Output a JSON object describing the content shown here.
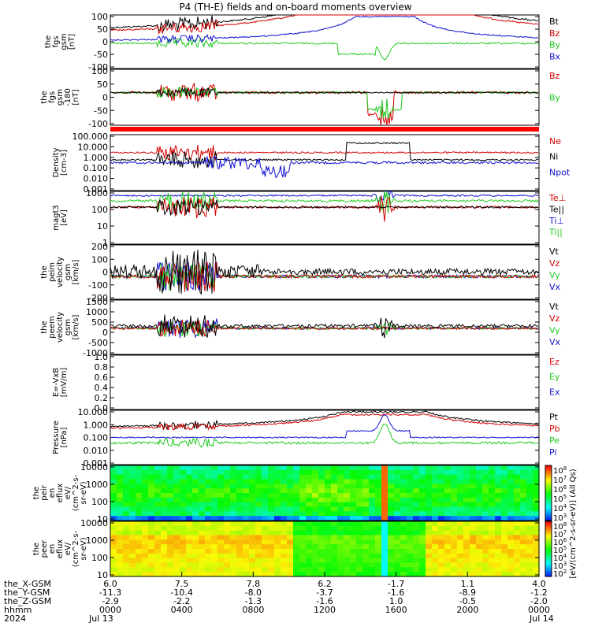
{
  "title": "P4 (TH-E) fields and on-board moments overview",
  "colors": {
    "black": "#000000",
    "red": "#d40000",
    "green": "#22cc22",
    "blue": "#1010d0"
  },
  "chart_data": {
    "type": "line",
    "x_axis": {
      "ticks_hhmm": [
        "0000",
        "0400",
        "0800",
        "1200",
        "1600",
        "2000",
        "0000"
      ],
      "x_gsm": [
        "6.0",
        "7.5",
        "7.8",
        "6.2",
        "-1.7",
        "1.1",
        "4.0"
      ],
      "y_gsm": [
        "-11.3",
        "-10.4",
        "-8.0",
        "-3.7",
        "-1.6",
        "-8.9",
        "-1.2"
      ],
      "z_gsm": [
        "-2.9",
        "-2.2",
        "-1.3",
        "-1.6",
        "1.0",
        "-0.5",
        "-2.0"
      ],
      "row_labels": [
        "the_X-GSM",
        "the_Y-GSM",
        "the_Z-GSM",
        "hhmm",
        "2024"
      ],
      "dates": [
        "Jul 13",
        "Jul 14"
      ]
    },
    "panels": [
      {
        "id": "fgs",
        "ylabel": [
          "the",
          "fgs",
          "gsm",
          "[nT]"
        ],
        "yticks": [
          "100",
          "50",
          "0",
          "-50",
          "-100"
        ],
        "ylim": [
          -100,
          100
        ],
        "legend": [
          {
            "label": "Bt",
            "color": "black"
          },
          {
            "label": "Bz",
            "color": "red"
          },
          {
            "label": "By",
            "color": "green"
          },
          {
            "label": "Bx",
            "color": "blue"
          }
        ]
      },
      {
        "id": "fgs_angle",
        "ylabel": [
          "the",
          "fgs",
          "gsm",
          "-180",
          "[nT]"
        ],
        "yticks": [
          "100",
          "50",
          "0",
          "-50",
          "-100"
        ],
        "ylim": [
          -120,
          100
        ],
        "legend": [
          {
            "label": "Bz",
            "color": "red"
          },
          {
            "label": "By",
            "color": "green"
          }
        ]
      },
      {
        "id": "density",
        "ylabel": [
          "Density",
          "[cm-3]"
        ],
        "yticks": [
          "100.000",
          "10.000",
          "1.000",
          "0.100",
          "0.010",
          "0.001"
        ],
        "log": true,
        "legend": [
          {
            "label": "Ne",
            "color": "red"
          },
          {
            "label": "Ni",
            "color": "black"
          },
          {
            "label": "Npot",
            "color": "blue"
          }
        ]
      },
      {
        "id": "temp",
        "ylabel": [
          "magt3",
          "[eV]"
        ],
        "yticks": [
          "1000",
          "100",
          "10",
          "1"
        ],
        "log": true,
        "legend": [
          {
            "label": "Te⊥",
            "color": "red"
          },
          {
            "label": "Te||",
            "color": "black"
          },
          {
            "label": "Ti⊥",
            "color": "blue"
          },
          {
            "label": "Ti||",
            "color": "green"
          }
        ]
      },
      {
        "id": "peim_vel",
        "ylabel": [
          "the",
          "peim",
          "velocity",
          "gsm",
          "[km/s]"
        ],
        "yticks": [
          "200",
          "100",
          "0",
          "-100",
          "-200"
        ],
        "ylim": [
          -200,
          200
        ],
        "legend": [
          {
            "label": "Vt",
            "color": "black"
          },
          {
            "label": "Vz",
            "color": "red"
          },
          {
            "label": "Vy",
            "color": "green"
          },
          {
            "label": "Vx",
            "color": "blue"
          }
        ]
      },
      {
        "id": "peem_vel",
        "ylabel": [
          "the",
          "peem",
          "velocity",
          "gsm",
          "[km/s]"
        ],
        "yticks": [
          "1500",
          "1000",
          "500",
          "0",
          "-500",
          "-1000"
        ],
        "ylim": [
          -1500,
          1500
        ],
        "legend": [
          {
            "label": "Vt",
            "color": "black"
          },
          {
            "label": "Vz",
            "color": "red"
          },
          {
            "label": "Vy",
            "color": "green"
          },
          {
            "label": "Vx",
            "color": "blue"
          }
        ]
      },
      {
        "id": "efield",
        "ylabel": [
          "E=-VxB",
          "[mV/m]"
        ],
        "yticks": [
          "1.0",
          "0.8",
          "0.6",
          "0.4",
          "0.2",
          "0.0"
        ],
        "ylim": [
          0,
          1
        ],
        "legend": [
          {
            "label": "Ez",
            "color": "red"
          },
          {
            "label": "Ey",
            "color": "green"
          },
          {
            "label": "Ex",
            "color": "blue"
          }
        ]
      },
      {
        "id": "pressure",
        "ylabel": [
          "Pressure",
          "[nPa]"
        ],
        "yticks": [
          "10.000",
          "1.000",
          "0.100",
          "0.010",
          "0.001"
        ],
        "log": true,
        "legend": [
          {
            "label": "Pt",
            "color": "black"
          },
          {
            "label": "Pb",
            "color": "red"
          },
          {
            "label": "Pe",
            "color": "green"
          },
          {
            "label": "Pi",
            "color": "blue"
          }
        ]
      },
      {
        "id": "peir_flux",
        "ylabel": [
          "the",
          "peir",
          "en",
          "eflux",
          "eV/",
          "(cm^2-s-",
          "sr-eV)"
        ],
        "yticks": [
          "10000",
          "1000",
          "100",
          "10"
        ],
        "type": "heatmap"
      },
      {
        "id": "peer_flux",
        "ylabel": [
          "the",
          "peer",
          "en",
          "eflux",
          "eV/",
          "(cm^2-s-",
          "sr-eV)"
        ],
        "yticks": [
          "10000",
          "1000",
          "100",
          "10"
        ],
        "type": "heatmap"
      }
    ],
    "colorbars": {
      "ion": {
        "labels": [
          "10^8",
          "10^7",
          "10^6",
          "10^5",
          "10^4",
          "10^3"
        ],
        "title": "[eV/(cm^2-s-sr-eV)] (All Qs)"
      },
      "electron": {
        "labels": [
          "10^8",
          "10^7",
          "10^6",
          "10^5",
          "10^4",
          "10^3",
          "10^2"
        ],
        "title": "[eV/(cm^2-s-sr-eV)]"
      }
    }
  }
}
